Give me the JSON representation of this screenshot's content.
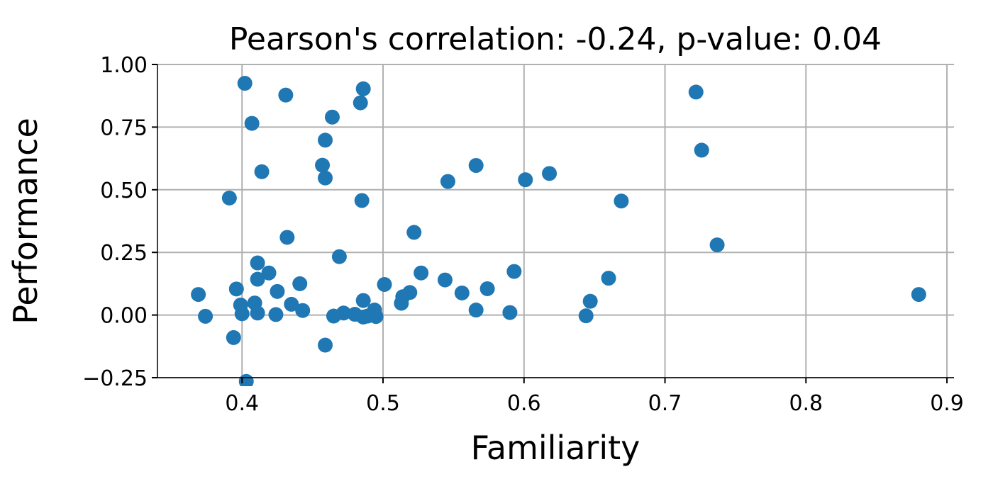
{
  "chart_data": {
    "type": "scatter",
    "title": "Pearson's correlation: -0.24, p-value: 0.04",
    "xlabel": "Familiarity",
    "ylabel": "Performance",
    "xlim": [
      0.34,
      0.905
    ],
    "ylim": [
      -0.25,
      1.0
    ],
    "xticks": [
      0.4,
      0.5,
      0.6,
      0.7,
      0.8,
      0.9
    ],
    "xtick_labels": [
      "0.4",
      "0.5",
      "0.6",
      "0.7",
      "0.8",
      "0.9"
    ],
    "yticks": [
      -0.25,
      0.0,
      0.25,
      0.5,
      0.75,
      1.0
    ],
    "ytick_labels": [
      "−0.25",
      "0.00",
      "0.25",
      "0.50",
      "0.75",
      "1.00"
    ],
    "grid": true,
    "marker_color": "#1f77b4",
    "x": [
      0.402,
      0.431,
      0.486,
      0.484,
      0.407,
      0.464,
      0.459,
      0.414,
      0.457,
      0.459,
      0.391,
      0.485,
      0.432,
      0.411,
      0.419,
      0.411,
      0.469,
      0.396,
      0.441,
      0.425,
      0.369,
      0.374,
      0.399,
      0.4,
      0.409,
      0.411,
      0.424,
      0.435,
      0.443,
      0.394,
      0.459,
      0.465,
      0.472,
      0.48,
      0.486,
      0.489,
      0.494,
      0.495,
      0.486,
      0.501,
      0.513,
      0.514,
      0.519,
      0.522,
      0.527,
      0.544,
      0.546,
      0.556,
      0.566,
      0.566,
      0.574,
      0.59,
      0.593,
      0.601,
      0.618,
      0.644,
      0.647,
      0.66,
      0.669,
      0.722,
      0.726,
      0.737,
      0.88,
      0.403
    ],
    "y": [
      0.925,
      0.878,
      0.903,
      0.847,
      0.765,
      0.79,
      0.698,
      0.572,
      0.598,
      0.547,
      0.467,
      0.457,
      0.31,
      0.208,
      0.168,
      0.143,
      0.233,
      0.104,
      0.125,
      0.094,
      0.082,
      -0.005,
      0.04,
      0.005,
      0.048,
      0.008,
      0.002,
      0.043,
      0.018,
      -0.09,
      -0.12,
      -0.004,
      0.008,
      0.003,
      -0.008,
      -0.004,
      0.02,
      -0.006,
      0.058,
      0.122,
      0.047,
      0.073,
      0.09,
      0.33,
      0.168,
      0.14,
      0.533,
      0.088,
      0.597,
      0.02,
      0.105,
      0.01,
      0.174,
      0.54,
      0.565,
      -0.003,
      0.055,
      0.147,
      0.455,
      0.89,
      0.658,
      0.28,
      0.082,
      -0.265
    ]
  }
}
